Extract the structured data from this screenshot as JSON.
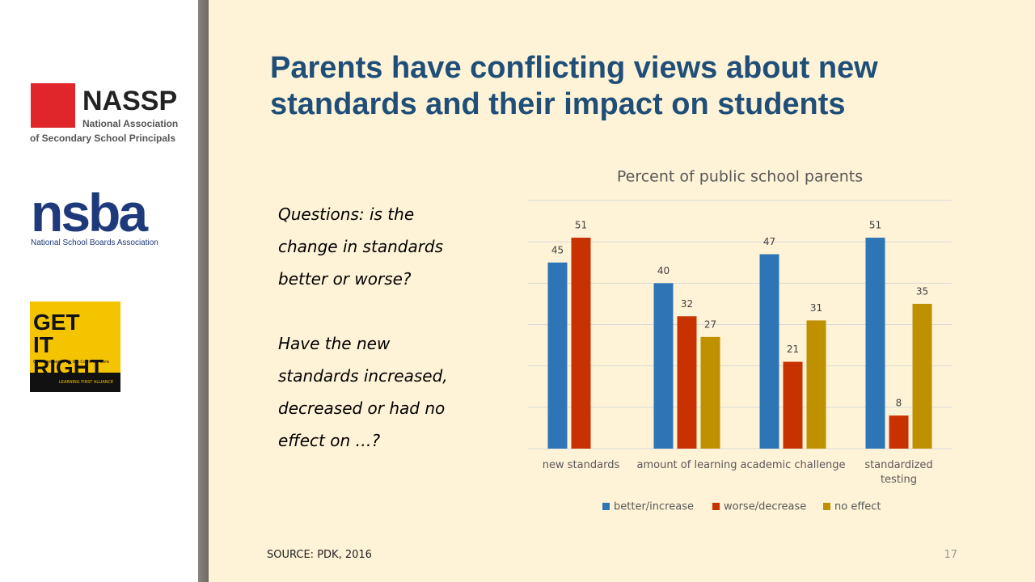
{
  "logos": {
    "nassp": {
      "name": "NASSP",
      "line1": "National Association",
      "line2": "of Secondary School Principals"
    },
    "nsba": {
      "name": "nsba",
      "caption": "National School Boards Association"
    },
    "getitright": {
      "name": "GET IT RIGHT",
      "tagline": "Common Sense on the Common Core",
      "partner": "LEARNING FIRST ALLIANCE"
    }
  },
  "title": "Parents have conflicting views about new standards and their impact on students",
  "questions": [
    "Questions: is the change in standards better or worse?",
    "Have the new standards increased, decreased or had no effect on …?"
  ],
  "source": "SOURCE: PDK, 2016",
  "page_number": "17",
  "chart_data": {
    "type": "bar",
    "title": "Percent of public school parents",
    "categories": [
      "new standards",
      "amount of learning",
      "academic challenge",
      "standardized testing"
    ],
    "series": [
      {
        "name": "better/increase",
        "color": "#2e75b6",
        "values": [
          45,
          40,
          47,
          51
        ]
      },
      {
        "name": "worse/decrease",
        "color": "#c83200",
        "values": [
          51,
          32,
          21,
          8
        ]
      },
      {
        "name": "no effect",
        "color": "#bf9000",
        "values": [
          null,
          27,
          31,
          35
        ]
      }
    ],
    "ylim": [
      0,
      60
    ],
    "yticks": [
      0,
      10,
      20,
      30,
      40,
      50,
      60
    ],
    "grid": true,
    "legend": "bottom"
  }
}
